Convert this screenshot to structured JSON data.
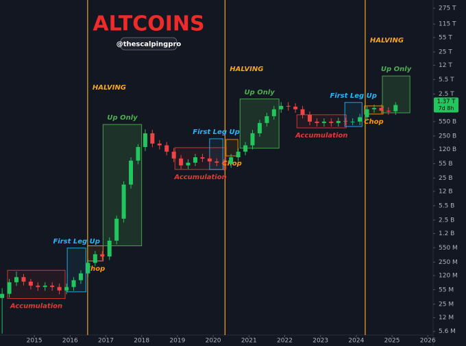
{
  "chart_data": {
    "type": "candlestick",
    "title": "ALTCOINS",
    "subtitle": "@thescalpingpro",
    "log_scale": true,
    "grid": false,
    "up_color": "#22c55e",
    "down_color": "#ef4444",
    "xlim": [
      2014.04,
      2026.11
    ],
    "xticks": [
      2015,
      2016,
      2017,
      2018,
      2019,
      2020,
      2021,
      2022,
      2023,
      2024,
      2025,
      2026
    ],
    "ylim": [
      4600000,
      430000000000000
    ],
    "yticks": [
      {
        "value": 275000000000000,
        "label": "275 T"
      },
      {
        "value": 115000000000000,
        "label": "115 T"
      },
      {
        "value": 55000000000000,
        "label": "55 T"
      },
      {
        "value": 25000000000000,
        "label": "25 T"
      },
      {
        "value": 12000000000000,
        "label": "12 T"
      },
      {
        "value": 5500000000000,
        "label": "5.5 T"
      },
      {
        "value": 2500000000000,
        "label": "2.5 T"
      },
      {
        "value": 550000000000,
        "label": "550 B"
      },
      {
        "value": 250000000000,
        "label": "250 B"
      },
      {
        "value": 120000000000,
        "label": "120 B"
      },
      {
        "value": 55000000000,
        "label": "55 B"
      },
      {
        "value": 25000000000,
        "label": "25 B"
      },
      {
        "value": 12000000000,
        "label": "12 B"
      },
      {
        "value": 5500000000,
        "label": "5.5 B"
      },
      {
        "value": 2500000000,
        "label": "2.5 B"
      },
      {
        "value": 1200000000,
        "label": "1.2 B"
      },
      {
        "value": 550000000,
        "label": "550 M"
      },
      {
        "value": 250000000,
        "label": "250 M"
      },
      {
        "value": 120000000,
        "label": "120 M"
      },
      {
        "value": 55000000,
        "label": "55 M"
      },
      {
        "value": 25000000,
        "label": "25 M"
      },
      {
        "value": 12000000,
        "label": "12 M"
      },
      {
        "value": 5600000,
        "label": "5.6 M"
      }
    ],
    "x": [
      2014.1,
      2014.3,
      2014.5,
      2014.7,
      2014.9,
      2015.1,
      2015.3,
      2015.5,
      2015.7,
      2015.9,
      2016.1,
      2016.3,
      2016.5,
      2016.7,
      2016.9,
      2017.1,
      2017.3,
      2017.5,
      2017.7,
      2017.9,
      2018.1,
      2018.3,
      2018.5,
      2018.7,
      2018.9,
      2019.1,
      2019.3,
      2019.5,
      2019.7,
      2019.9,
      2020.1,
      2020.3,
      2020.5,
      2020.7,
      2020.9,
      2021.1,
      2021.3,
      2021.5,
      2021.7,
      2021.9,
      2022.1,
      2022.3,
      2022.5,
      2022.7,
      2022.9,
      2023.1,
      2023.3,
      2023.5,
      2023.7,
      2023.9,
      2024.1,
      2024.3,
      2024.5,
      2024.7,
      2024.9,
      2025.1
    ],
    "open": [
      35000000.0,
      44000000.0,
      83000000.0,
      110000000.0,
      86000000.0,
      69000000.0,
      64000000.0,
      69000000.0,
      64000000.0,
      53000000.0,
      64000000.0,
      93000000.0,
      135000000.0,
      240000000.0,
      385000000.0,
      340000000.0,
      810000000.0,
      2700000000.0,
      17500000000.0,
      65000000000.0,
      137000000000.0,
      290000000000.0,
      165000000000.0,
      150000000000.0,
      106000000000.0,
      73000000000.0,
      50000000000.0,
      58000000000.0,
      78000000000.0,
      73000000000.0,
      62000000000.0,
      58000000000.0,
      54000000000.0,
      78000000000.0,
      106000000000.0,
      150000000000.0,
      290000000000.0,
      510000000000.0,
      740000000000.0,
      1080000000000.0,
      1300000000000.0,
      1250000000000.0,
      1080000000000.0,
      800000000000.0,
      550000000000.0,
      510000000000.0,
      550000000000.0,
      510000000000.0,
      570000000000.0,
      550000000000.0,
      550000000000.0,
      700000000000.0,
      1080000000000.0,
      1160000000000.0,
      1000000000000.0,
      970000000000.0
    ],
    "high": [
      60000000.0,
      100000000.0,
      150000000.0,
      130000000.0,
      100000000.0,
      83000000.0,
      83000000.0,
      83000000.0,
      77000000.0,
      77000000.0,
      110000000.0,
      160000000.0,
      290000000.0,
      460000000.0,
      460000000.0,
      970000000.0,
      3200000000.0,
      21000000000.0,
      78000000000.0,
      160000000000.0,
      360000000000.0,
      350000000000.0,
      200000000000.0,
      180000000000.0,
      130000000000.0,
      88000000000.0,
      70000000000.0,
      94000000000.0,
      94000000000.0,
      88000000000.0,
      74000000000.0,
      70000000000.0,
      94000000000.0,
      130000000000.0,
      180000000000.0,
      350000000000.0,
      610000000000.0,
      890000000000.0,
      1300000000000.0,
      1600000000000.0,
      1600000000000.0,
      1500000000000.0,
      1300000000000.0,
      960000000000.0,
      660000000000.0,
      660000000000.0,
      660000000000.0,
      680000000000.0,
      680000000000.0,
      660000000000.0,
      840000000000.0,
      1300000000000.0,
      1400000000000.0,
      1400000000000.0,
      1200000000000.0,
      1600000000000.0
    ],
    "low": [
      5000000.0,
      36000000.0,
      68000000.0,
      70000000.0,
      56000000.0,
      52000000.0,
      52000000.0,
      52000000.0,
      43000000.0,
      43000000.0,
      52000000.0,
      76000000.0,
      110000000.0,
      200000000.0,
      280000000.0,
      280000000.0,
      660000000.0,
      2200000000.0,
      14000000000.0,
      53000000000.0,
      110000000000.0,
      135000000000.0,
      120000000000.0,
      87000000000.0,
      60000000000.0,
      41000000000.0,
      41000000000.0,
      48000000000.0,
      60000000000.0,
      51000000000.0,
      48000000000.0,
      38000000000.0,
      44000000000.0,
      64000000000.0,
      87000000000.0,
      120000000000.0,
      240000000000.0,
      420000000000.0,
      610000000000.0,
      890000000000.0,
      1000000000000.0,
      890000000000.0,
      660000000000.0,
      450000000000.0,
      420000000000.0,
      420000000000.0,
      420000000000.0,
      420000000000.0,
      450000000000.0,
      450000000000.0,
      450000000000.0,
      570000000000.0,
      890000000000.0,
      820000000000.0,
      800000000000.0,
      800000000000.0
    ],
    "close": [
      44000000.0,
      83000000.0,
      110000000.0,
      86000000.0,
      69000000.0,
      64000000.0,
      69000000.0,
      64000000.0,
      53000000.0,
      64000000.0,
      93000000.0,
      135000000.0,
      240000000.0,
      385000000.0,
      340000000.0,
      810000000.0,
      2700000000.0,
      17500000000.0,
      65000000000.0,
      137000000000.0,
      290000000000.0,
      165000000000.0,
      150000000000.0,
      106000000000.0,
      73000000000.0,
      50000000000.0,
      58000000000.0,
      78000000000.0,
      73000000000.0,
      62000000000.0,
      58000000000.0,
      54000000000.0,
      78000000000.0,
      106000000000.0,
      150000000000.0,
      290000000000.0,
      510000000000.0,
      740000000000.0,
      1080000000000.0,
      1300000000000.0,
      1250000000000.0,
      1080000000000.0,
      800000000000.0,
      550000000000.0,
      510000000000.0,
      550000000000.0,
      510000000000.0,
      570000000000.0,
      550000000000.0,
      550000000000.0,
      700000000000.0,
      1080000000000.0,
      1160000000000.0,
      1000000000000.0,
      970000000000.0,
      1370000000000.0
    ],
    "last_price": {
      "value": 1370000000000,
      "label": "1.37 T",
      "countdown": "7d 8h"
    },
    "halvings": [
      {
        "x": 2016.49,
        "label": "HALVING"
      },
      {
        "x": 2020.33,
        "label": "HALVING"
      },
      {
        "x": 2024.25,
        "label": "HALVING"
      }
    ],
    "halving_color": "#f5a623",
    "annotations": [
      {
        "label": "Accumulation",
        "color": "#e53935",
        "side": "below",
        "x": [
          2014.25,
          2015.86
        ],
        "y": [
          34000000.0,
          160000000.0
        ]
      },
      {
        "label": "First Leg Up",
        "color": "#29b6f6",
        "side": "above",
        "x": [
          2015.92,
          2016.44
        ],
        "y": [
          49000000.0,
          540000000.0
        ]
      },
      {
        "label": "Chop",
        "color": "#ff9800",
        "side": "below",
        "x": [
          2016.49,
          2016.92
        ],
        "y": [
          265000000.0,
          610000000.0
        ]
      },
      {
        "label": "Up Only",
        "color": "#4caf50",
        "side": "above",
        "x": [
          2016.92,
          2018.0
        ],
        "y": [
          610000000.0,
          470000000000.0
        ]
      },
      {
        "label": "Accumulation",
        "color": "#e53935",
        "side": "below",
        "x": [
          2018.93,
          2020.36
        ],
        "y": [
          40000000000.0,
          132000000000.0
        ]
      },
      {
        "label": "First Leg Up",
        "color": "#29b6f6",
        "side": "above",
        "x": [
          2019.9,
          2020.27
        ],
        "y": [
          40000000000.0,
          215000000000.0
        ]
      },
      {
        "label": "Chop",
        "color": "#ff9800",
        "side": "below",
        "x": [
          2020.36,
          2020.69
        ],
        "y": [
          84000000000.0,
          207000000000.0
        ]
      },
      {
        "label": "Up Only",
        "color": "#4caf50",
        "side": "above",
        "x": [
          2020.75,
          2021.84
        ],
        "y": [
          128000000000.0,
          1900000000000.0
        ]
      },
      {
        "label": "Accumulation",
        "color": "#e53935",
        "side": "below",
        "x": [
          2022.34,
          2023.72
        ],
        "y": [
          390000000000.0,
          800000000000.0
        ]
      },
      {
        "label": "First Leg Up",
        "color": "#29b6f6",
        "side": "above",
        "x": [
          2023.68,
          2024.16
        ],
        "y": [
          420000000000.0,
          1570000000000.0
        ]
      },
      {
        "label": "Chop",
        "color": "#ff9800",
        "side": "below",
        "x": [
          2024.23,
          2024.75
        ],
        "y": [
          830000000000.0,
          1300000000000.0
        ]
      },
      {
        "label": "Up Only",
        "color": "#4caf50",
        "side": "above",
        "x": [
          2024.73,
          2025.5
        ],
        "y": [
          890000000000.0,
          6700000000000.0
        ]
      }
    ]
  }
}
